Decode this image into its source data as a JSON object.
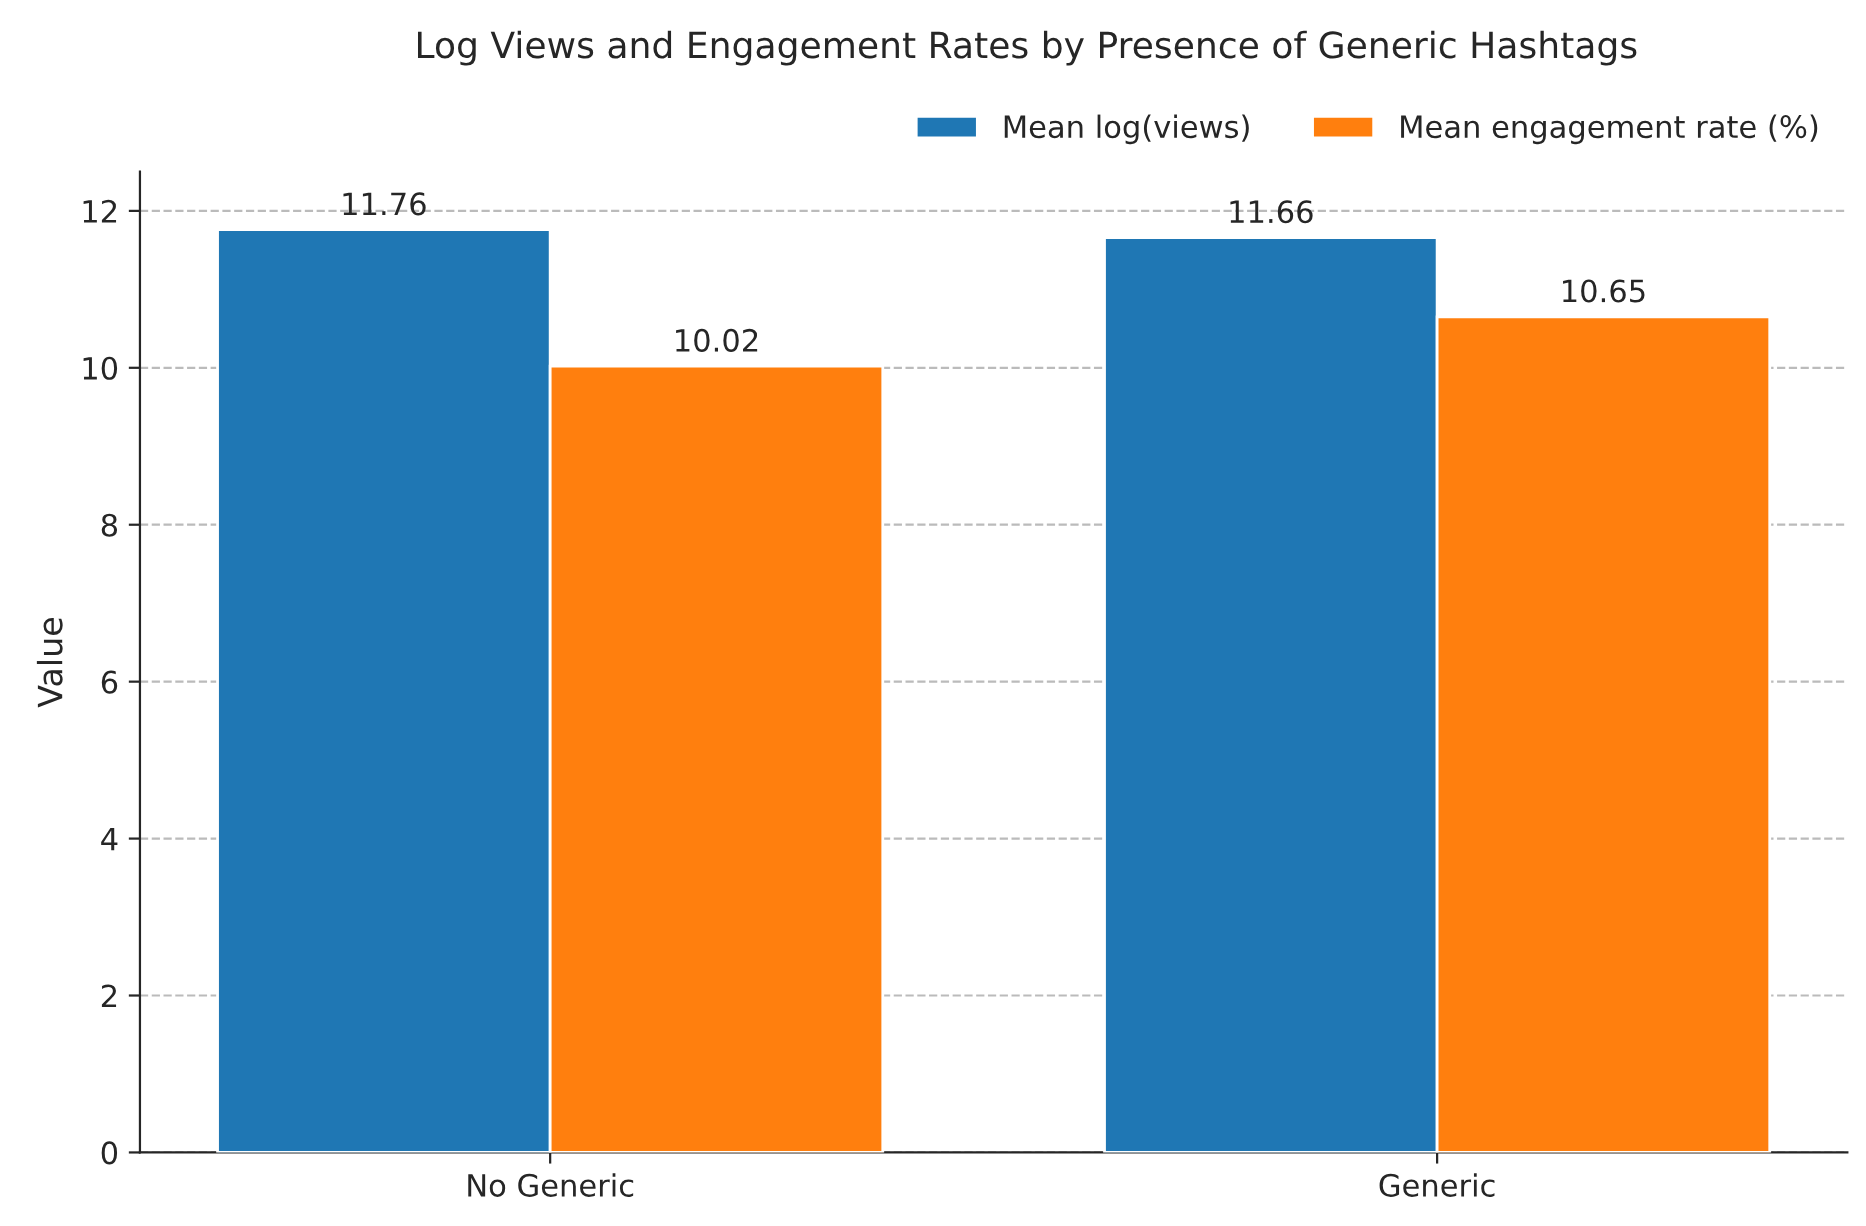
{
  "chart_data": {
    "type": "bar",
    "title": "Log Views and Engagement Rates by Presence of Generic Hashtags",
    "ylabel": "Value",
    "categories": [
      "No Generic",
      "Generic"
    ],
    "series": [
      {
        "name": "Mean log(views)",
        "color": "#1f77b4",
        "values": [
          11.76,
          11.66
        ]
      },
      {
        "name": "Mean engagement rate (%)",
        "color": "#ff7f0e",
        "values": [
          10.02,
          10.65
        ]
      }
    ],
    "ylim": [
      0,
      12.5
    ],
    "yticks": [
      0,
      2,
      4,
      6,
      8,
      10,
      12
    ],
    "grid": "y",
    "legend": "top right",
    "data_labels": true
  }
}
